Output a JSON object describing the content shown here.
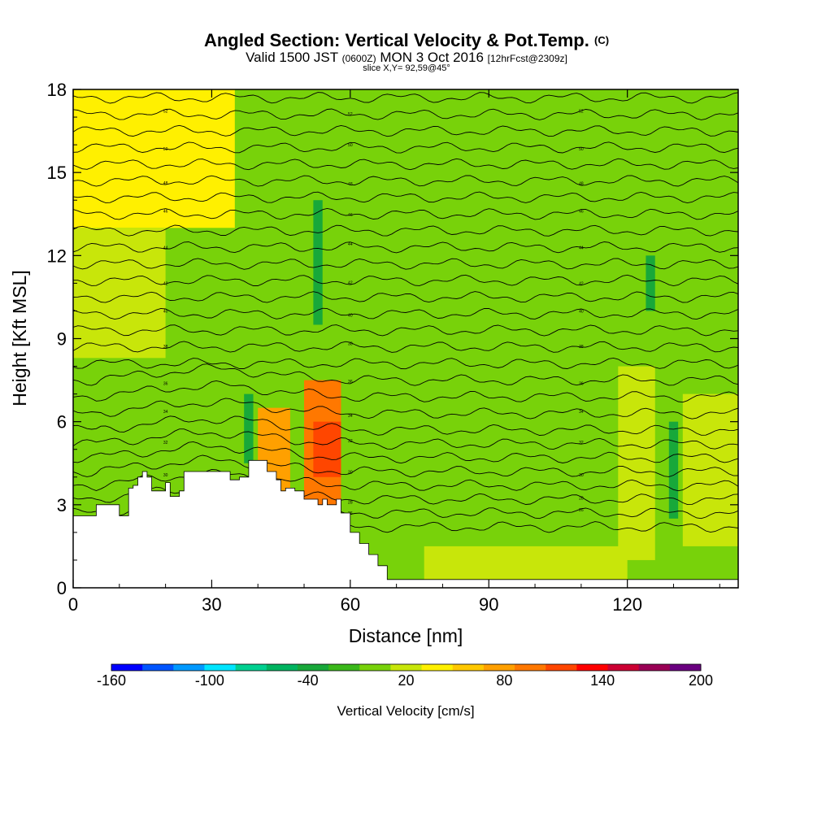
{
  "chart_data": {
    "type": "heatmap",
    "title": "Angled Section: Vertical Velocity & Pot.Temp.",
    "title_suffix": "(C)",
    "subtitle_valid": "Valid 1500 JST",
    "subtitle_utc": "(0600Z)",
    "subtitle_date": "MON 3 Oct 2016",
    "subtitle_fcst": "[12hrFcst@2309z]",
    "slice_info": "slice X,Y= 92,59@45°",
    "xlabel": "Distance [nm]",
    "ylabel": "Height [Kft MSL]",
    "xlim": [
      0,
      144
    ],
    "ylim": [
      0,
      18
    ],
    "x_ticks": [
      0,
      30,
      60,
      90,
      120
    ],
    "y_ticks": [
      0,
      3,
      6,
      9,
      12,
      15,
      18
    ],
    "x_tick_labels": [
      "0",
      "30",
      "60",
      "90",
      "120"
    ],
    "y_tick_labels": [
      "0",
      "3",
      "6",
      "9",
      "12",
      "15",
      "18"
    ],
    "colorbar": {
      "title": "Vertical Velocity [cm/s]",
      "labels": [
        "-160",
        "-100",
        "-40",
        "20",
        "80",
        "140",
        "200"
      ],
      "colors": [
        "#0000ff",
        "#0055ff",
        "#0099ff",
        "#00e5ff",
        "#00d090",
        "#00b460",
        "#18a83a",
        "#3ab81a",
        "#78d20a",
        "#c8e60a",
        "#fff000",
        "#ffc800",
        "#ffa000",
        "#ff7800",
        "#ff4600",
        "#ff0000",
        "#cc0033",
        "#990055",
        "#6a0080"
      ],
      "range": [
        -160,
        200
      ]
    },
    "terrain_profile_kft": {
      "x": [
        0,
        5,
        10,
        12,
        13,
        14,
        15,
        16,
        17,
        18,
        20,
        21,
        22,
        23,
        24,
        26,
        28,
        30,
        32,
        34,
        34.5,
        35,
        36,
        38,
        40,
        42,
        44,
        45,
        46,
        48,
        50,
        52,
        53,
        54,
        55,
        56,
        57,
        58,
        60,
        62,
        64,
        66,
        68,
        70,
        75,
        80,
        90,
        100,
        110,
        113,
        120,
        125,
        130,
        135,
        138,
        140,
        144
      ],
      "y": [
        2.6,
        3.0,
        2.6,
        3.6,
        3.7,
        4.0,
        4.2,
        4.0,
        3.5,
        3.5,
        3.8,
        3.3,
        3.3,
        3.5,
        4.2,
        4.2,
        4.2,
        4.2,
        4.2,
        3.9,
        3.9,
        3.9,
        4.0,
        4.6,
        4.6,
        4.2,
        3.9,
        3.5,
        3.6,
        3.5,
        3.2,
        3.2,
        3.0,
        3.2,
        3.0,
        3.0,
        3.2,
        2.7,
        2.0,
        1.6,
        1.2,
        0.8,
        0.3,
        0.3,
        0.3,
        0.3,
        0.3,
        0.3,
        0.3,
        0.3,
        0.3,
        0.3,
        0.3,
        0.3,
        0.3,
        0.3,
        0.3
      ]
    },
    "velocity_features": [
      {
        "x": [
          0,
          35
        ],
        "y": [
          13.0,
          18
        ],
        "value": 30,
        "label": "upper-left broad updraft"
      },
      {
        "x": [
          0,
          20
        ],
        "y": [
          8.3,
          13.0
        ],
        "value": 15,
        "label": "mid-left weak updraft"
      },
      {
        "x": [
          40,
          47
        ],
        "y": [
          3.5,
          6.5
        ],
        "value": 70,
        "label": "orange updraft"
      },
      {
        "x": [
          50,
          58
        ],
        "y": [
          3.0,
          7.5
        ],
        "value": 90,
        "label": "strongest updraft"
      },
      {
        "x": [
          52,
          58
        ],
        "y": [
          4.0,
          6.0
        ],
        "value": 110,
        "label": "core updraft"
      },
      {
        "x": [
          37,
          39
        ],
        "y": [
          4.5,
          7.0
        ],
        "value": -30,
        "label": "downdraft"
      },
      {
        "x": [
          52,
          54
        ],
        "y": [
          9.5,
          14.0
        ],
        "value": -30,
        "label": "downdraft"
      },
      {
        "x": [
          124,
          126
        ],
        "y": [
          10.0,
          12.0
        ],
        "value": -30,
        "label": "downdraft"
      },
      {
        "x": [
          129,
          131
        ],
        "y": [
          2.5,
          6.0
        ],
        "value": -30,
        "label": "downdraft"
      },
      {
        "x": [
          118,
          126
        ],
        "y": [
          1.0,
          8.0
        ],
        "value": 15,
        "label": "weak updraft band"
      },
      {
        "x": [
          132,
          144
        ],
        "y": [
          1.5,
          7.0
        ],
        "value": 15,
        "label": "weak updraft band"
      },
      {
        "x": [
          76,
          120
        ],
        "y": [
          0.3,
          1.5
        ],
        "value": 15,
        "label": "weak low-level updraft"
      },
      {
        "x": [
          138,
          144
        ],
        "y": [
          11.0,
          18
        ],
        "value": 10,
        "label": "weak updraft band"
      }
    ],
    "isentropes": [
      {
        "y0": 2.2,
        "label": ""
      },
      {
        "y0": 2.7,
        "label": "26"
      },
      {
        "y0": 3.2,
        "label": "28"
      },
      {
        "y0": 3.7,
        "label": ""
      },
      {
        "y0": 4.2,
        "label": "30"
      },
      {
        "y0": 4.7,
        "label": ""
      },
      {
        "y0": 5.2,
        "label": "32"
      },
      {
        "y0": 5.7,
        "label": ""
      },
      {
        "y0": 6.3,
        "label": "34"
      },
      {
        "y0": 6.9,
        "label": ""
      },
      {
        "y0": 7.5,
        "label": "36"
      },
      {
        "y0": 8.1,
        "label": ""
      },
      {
        "y0": 8.7,
        "label": "38"
      },
      {
        "y0": 9.3,
        "label": ""
      },
      {
        "y0": 9.9,
        "label": "40"
      },
      {
        "y0": 10.5,
        "label": ""
      },
      {
        "y0": 11.1,
        "label": "42"
      },
      {
        "y0": 11.7,
        "label": ""
      },
      {
        "y0": 12.3,
        "label": "44"
      },
      {
        "y0": 12.9,
        "label": ""
      },
      {
        "y0": 13.5,
        "label": "46"
      },
      {
        "y0": 14.1,
        "label": ""
      },
      {
        "y0": 14.7,
        "label": "48"
      },
      {
        "y0": 15.3,
        "label": ""
      },
      {
        "y0": 15.9,
        "label": "50"
      },
      {
        "y0": 16.5,
        "label": ""
      },
      {
        "y0": 17.1,
        "label": "52"
      },
      {
        "y0": 17.7,
        "label": ""
      }
    ]
  }
}
